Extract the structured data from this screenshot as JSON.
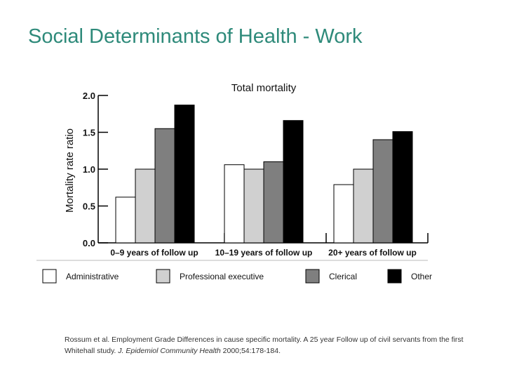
{
  "slide": {
    "title": "Social Determinants of Health - Work"
  },
  "chart_data": {
    "type": "bar",
    "title": "Total mortality",
    "xlabel": "",
    "ylabel": "Mortality rate ratio",
    "ylim": [
      0.0,
      2.0
    ],
    "yticks": [
      "0.0",
      "0.5",
      "1.0",
      "1.5",
      "2.0"
    ],
    "categories": [
      "0–9 years of follow up",
      "10–19 years of follow up",
      "20+ years of follow up"
    ],
    "series": [
      {
        "name": "Administrative",
        "color": "#ffffff",
        "values": [
          0.62,
          1.06,
          0.79
        ]
      },
      {
        "name": "Professional executive",
        "color": "#d0d0d0",
        "values": [
          1.0,
          1.0,
          1.0
        ]
      },
      {
        "name": "Clerical",
        "color": "#7f7f7f",
        "values": [
          1.55,
          1.1,
          1.4
        ]
      },
      {
        "name": "Other",
        "color": "#000000",
        "values": [
          1.87,
          1.66,
          1.51
        ]
      }
    ],
    "legend_position": "bottom",
    "grid": false
  },
  "caption": {
    "text_start": "Rossum et al.  Employment Grade Differences in cause specific mortality.  A 25 year Follow up of civil servants from the first Whitehall study.  ",
    "journal": "J. Epidemiol Community Health",
    "text_end": "  2000;54:178-184."
  }
}
